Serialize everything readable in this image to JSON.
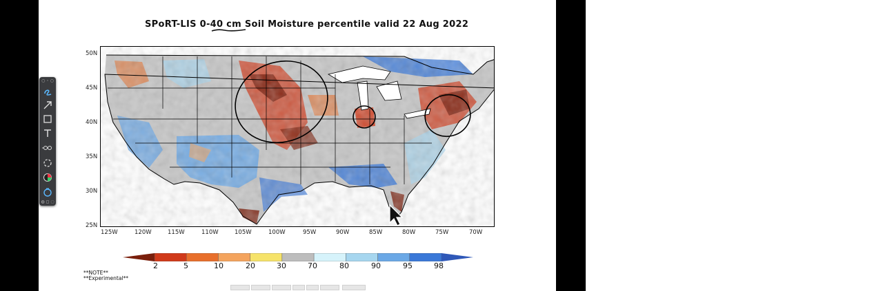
{
  "slide": {
    "title": "SPoRT-LIS 0-40 cm Soil Moisture percentile valid 22 Aug 2022",
    "note_line1": "**NOTE**",
    "note_line2": "**Experimental**"
  },
  "map": {
    "lat_labels": [
      "50N",
      "45N",
      "40N",
      "35N",
      "30N",
      "25N"
    ],
    "lon_labels": [
      "125W",
      "120W",
      "115W",
      "110W",
      "105W",
      "100W",
      "95W",
      "90W",
      "85W",
      "80W",
      "75W",
      "70W"
    ]
  },
  "colorbar": {
    "labels": [
      "2",
      "5",
      "10",
      "20",
      "30",
      "70",
      "80",
      "90",
      "95",
      "98"
    ],
    "colors": [
      "#7a1f0c",
      "#d03a1a",
      "#e86f2c",
      "#f4a45e",
      "#f6e36a",
      "#bdbdbd",
      "#d6f3fb",
      "#a6d6ef",
      "#6ba8e6",
      "#3a78d8",
      "#2f58b8"
    ]
  },
  "toolbar": {
    "tools": [
      "pen-tool",
      "arrow-tool",
      "rectangle-tool",
      "text-tool",
      "link-tool",
      "lasso-tool",
      "color-tool",
      "timer-tool"
    ]
  }
}
